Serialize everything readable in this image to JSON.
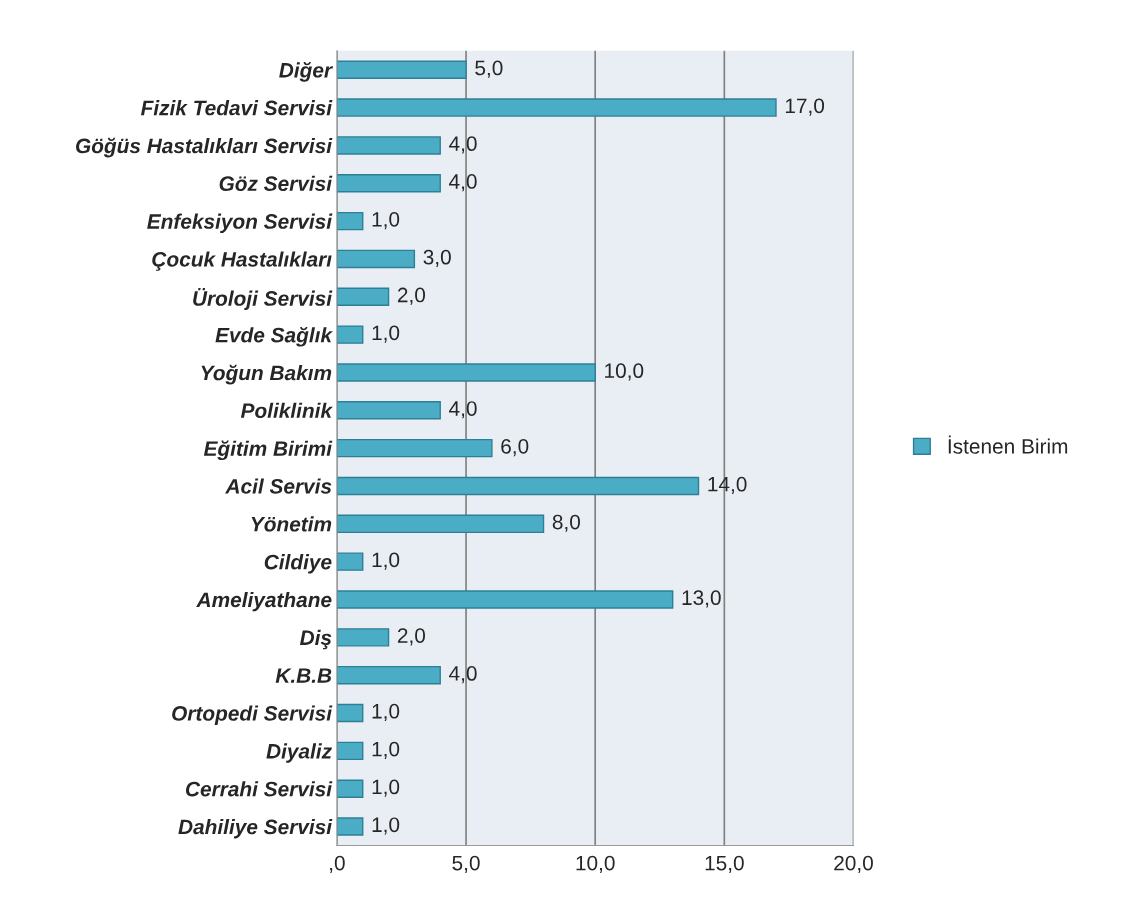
{
  "chart_data": {
    "type": "bar",
    "orientation": "horizontal",
    "categories": [
      "Diğer",
      "Fizik Tedavi Servisi",
      "Göğüs Hastalıkları Servisi",
      "Göz Servisi",
      "Enfeksiyon Servisi",
      "Çocuk Hastalıkları",
      "Üroloji Servisi",
      "Evde Sağlık",
      "Yoğun Bakım",
      "Poliklinik",
      "Eğitim Birimi",
      "Acil Servis",
      "Yönetim",
      "Cildiye",
      "Ameliyathane",
      "Diş",
      "K.B.B",
      "Ortopedi Servisi",
      "Diyaliz",
      "Cerrahi Servisi",
      "Dahiliye Servisi"
    ],
    "series": [
      {
        "name": "İstenen Birim",
        "color": "#4bacc6",
        "values": [
          5,
          17,
          4,
          4,
          1,
          3,
          2,
          1,
          10,
          4,
          6,
          14,
          8,
          1,
          13,
          2,
          4,
          1,
          1,
          1,
          1
        ],
        "value_labels": [
          "5,0",
          "17,0",
          "4,0",
          "4,0",
          "1,0",
          "3,0",
          "2,0",
          "1,0",
          "10,0",
          "4,0",
          "6,0",
          "14,0",
          "8,0",
          "1,0",
          "13,0",
          "2,0",
          "4,0",
          "1,0",
          "1,0",
          "1,0",
          "1,0"
        ]
      }
    ],
    "xlim": [
      0,
      20
    ],
    "xticks": [
      {
        "value": 0,
        "label": ",0"
      },
      {
        "value": 5,
        "label": "5,0"
      },
      {
        "value": 10,
        "label": "10,0"
      },
      {
        "value": 15,
        "label": "15,0"
      },
      {
        "value": 20,
        "label": "20,0"
      }
    ],
    "grid": "x",
    "legend": "right"
  }
}
